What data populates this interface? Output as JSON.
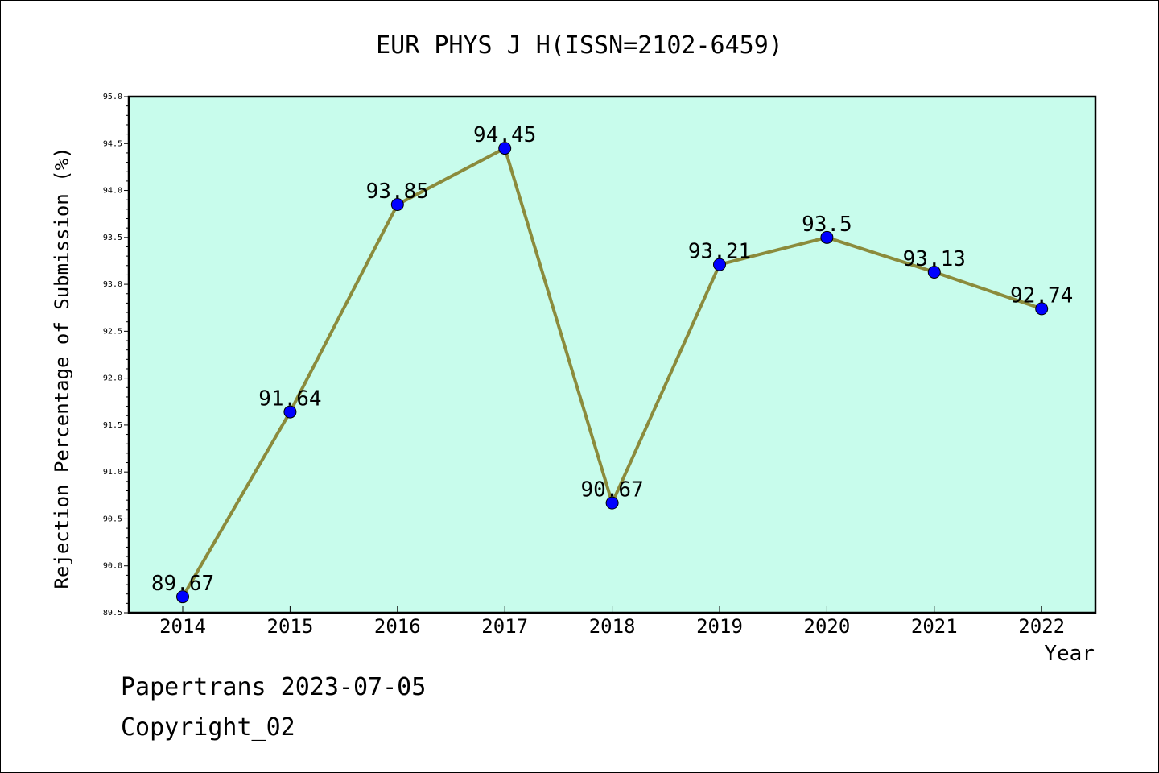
{
  "chart_data": {
    "type": "line",
    "title": "EUR PHYS J H(ISSN=2102-6459)",
    "xlabel": "Year",
    "ylabel": "Rejection Percentage of Submission (%)",
    "categories": [
      "2014",
      "2015",
      "2016",
      "2017",
      "2018",
      "2019",
      "2020",
      "2021",
      "2022"
    ],
    "values": [
      89.67,
      91.64,
      93.85,
      94.45,
      90.67,
      93.21,
      93.5,
      93.13,
      92.74
    ],
    "data_labels": [
      "89.67",
      "91.64",
      "93.85",
      "94.45",
      "90.67",
      "93.21",
      "93.5",
      "93.13",
      "92.74"
    ],
    "ylim": [
      89.5,
      95.0
    ],
    "yticks": [
      "89.5",
      "90.0",
      "90.5",
      "91.0",
      "91.5",
      "92.0",
      "92.5",
      "93.0",
      "93.5",
      "94.0",
      "94.5",
      "95.0"
    ],
    "grid": false,
    "colors": {
      "plot_background": "#c8fcec",
      "line": "#8b8b3c",
      "marker": "#0000ff"
    }
  },
  "footer": {
    "line1": "Papertrans 2023-07-05",
    "line2": "Copyright_02"
  }
}
